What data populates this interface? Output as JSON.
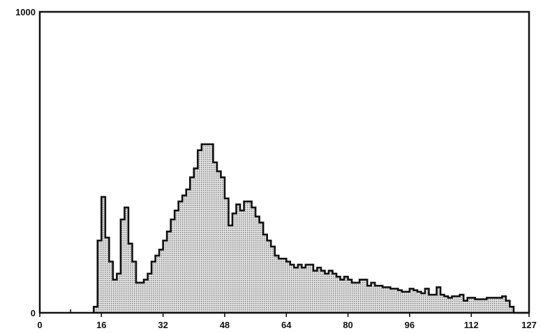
{
  "chart_data": {
    "type": "bar",
    "style": "step-histogram",
    "title": "",
    "xlabel": "",
    "ylabel": "",
    "xlim": [
      0,
      127
    ],
    "ylim": [
      0,
      1000
    ],
    "grid": false,
    "legend": "none",
    "x_ticks": [
      0,
      16,
      32,
      48,
      64,
      80,
      96,
      112,
      127
    ],
    "y_ticks": [
      0,
      1000
    ],
    "x_minor_ticks": [
      8
    ],
    "colors": {
      "fill": "#c8c8c8",
      "line": "#111111",
      "frame": "#111111"
    },
    "series": [
      {
        "bins": [
          14,
          15,
          16,
          17,
          18,
          19,
          20,
          21,
          22,
          23,
          24,
          25,
          26,
          27,
          28,
          29,
          30,
          31,
          32,
          33,
          34,
          35,
          36,
          37,
          38,
          39,
          40,
          41,
          42,
          43,
          44,
          45,
          46,
          47,
          48,
          49,
          50,
          51,
          52,
          53,
          54,
          55,
          56,
          57,
          58,
          59,
          60,
          61,
          62,
          63,
          64,
          65,
          66,
          67,
          68,
          69,
          70,
          71,
          72,
          73,
          74,
          75,
          76,
          77,
          78,
          79,
          80,
          81,
          82,
          83,
          84,
          85,
          86,
          87,
          88,
          89,
          90,
          91,
          92,
          93,
          94,
          95,
          96,
          97,
          98,
          99,
          100,
          101,
          102,
          103,
          104,
          105,
          106,
          107,
          108,
          109,
          110,
          111,
          112,
          113,
          114,
          115,
          116,
          117,
          118,
          119,
          120,
          121,
          122,
          123,
          124,
          125,
          126
        ],
        "values": [
          20,
          240,
          385,
          250,
          170,
          110,
          130,
          310,
          350,
          230,
          170,
          100,
          100,
          110,
          130,
          170,
          190,
          210,
          240,
          270,
          310,
          340,
          370,
          390,
          410,
          450,
          480,
          540,
          560,
          560,
          560,
          500,
          470,
          450,
          380,
          290,
          330,
          360,
          340,
          370,
          370,
          350,
          320,
          300,
          260,
          240,
          220,
          190,
          180,
          180,
          170,
          160,
          150,
          160,
          150,
          160,
          160,
          140,
          150,
          140,
          130,
          140,
          130,
          120,
          110,
          120,
          110,
          100,
          100,
          110,
          110,
          90,
          100,
          90,
          90,
          85,
          85,
          80,
          80,
          75,
          70,
          70,
          80,
          75,
          70,
          65,
          80,
          60,
          60,
          85,
          60,
          55,
          50,
          55,
          55,
          60,
          40,
          50,
          50,
          45,
          45,
          45,
          50,
          50,
          50,
          50,
          55,
          40,
          20,
          0,
          0,
          0,
          0
        ]
      }
    ]
  }
}
